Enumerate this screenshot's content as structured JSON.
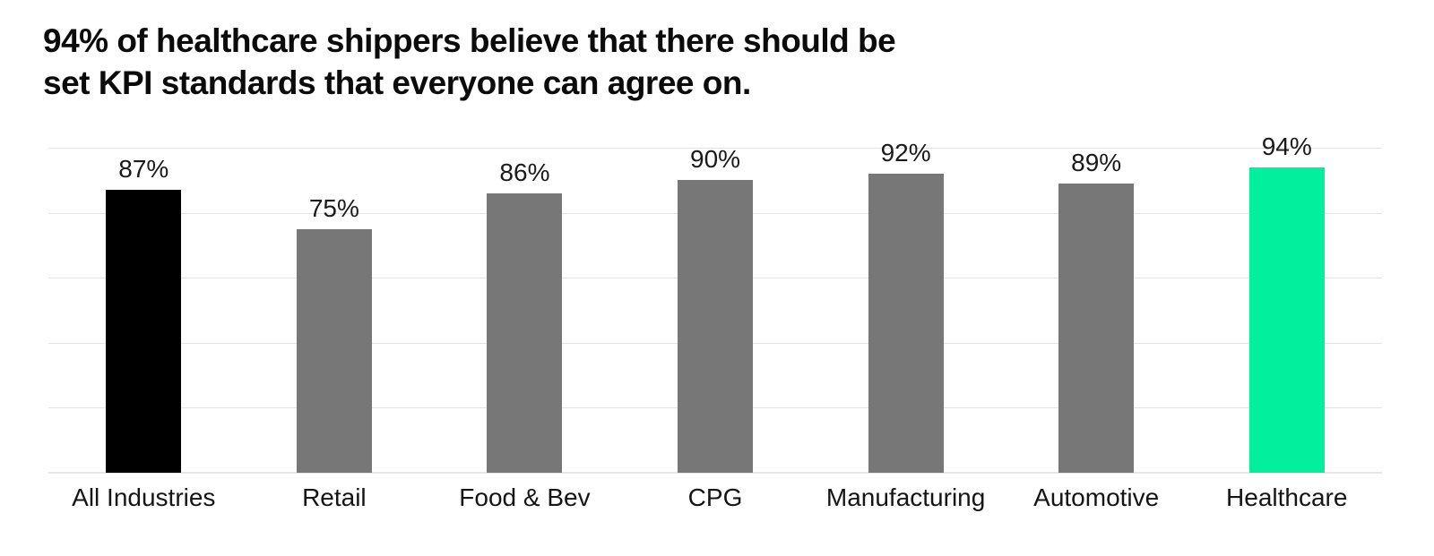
{
  "title": {
    "line1": "94% of healthcare shippers believe that there should be",
    "line2": "set KPI standards that everyone can agree on."
  },
  "chart_data": {
    "type": "bar",
    "title": "94% of healthcare shippers believe that there should be set KPI standards that everyone can agree on.",
    "xlabel": "",
    "ylabel": "",
    "categories": [
      "All Industries",
      "Retail",
      "Food & Bev",
      "CPG",
      "Manufacturing",
      "Automotive",
      "Healthcare"
    ],
    "values": [
      87,
      75,
      86,
      90,
      92,
      89,
      94
    ],
    "value_labels": [
      "87%",
      "75%",
      "86%",
      "90%",
      "92%",
      "89%",
      "94%"
    ],
    "bar_colors": [
      "#000000",
      "#777777",
      "#777777",
      "#777777",
      "#777777",
      "#777777",
      "#00F09D"
    ],
    "ylim": [
      0,
      100
    ],
    "gridline_interval_pct": 20,
    "grid": "horizontal",
    "legend_position": "none",
    "colors": {
      "highlight_bar": "#00F09D",
      "default_bar": "#777777",
      "first_bar": "#000000",
      "gridline": "#e3e3e3",
      "axis_line": "#e8e8e8",
      "text": "#0b0b0b"
    }
  }
}
